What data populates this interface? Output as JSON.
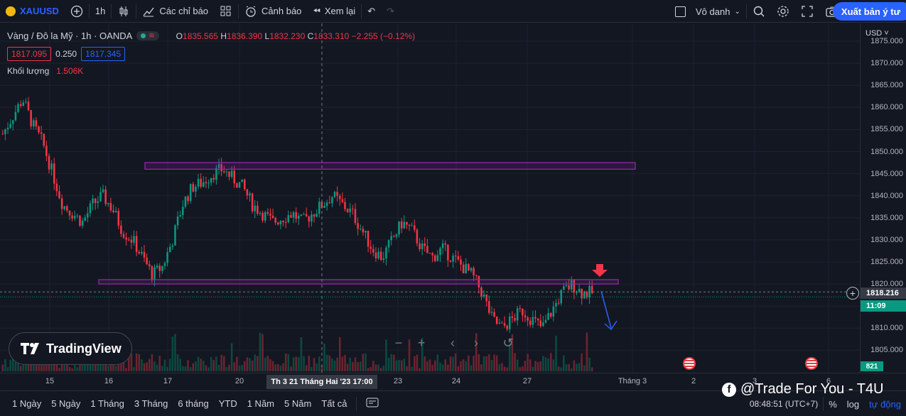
{
  "toolbar": {
    "symbol": "XAUUSD",
    "interval": "1h",
    "indicators_label": "Các chỉ báo",
    "alerts_label": "Cảnh báo",
    "replay_label": "Xem lại",
    "layout_name": "Vô danh",
    "publish_label": "Xuất bản ý tư"
  },
  "legend": {
    "title": "Vàng / Đô la Mỹ · 1h · OANDA",
    "open_key": "O",
    "open": "1835.565",
    "high_key": "H",
    "high": "1836.390",
    "low_key": "L",
    "low": "1832.230",
    "close_key": "C",
    "close": "1833.310",
    "change": "−2.255 (−0.12%)",
    "bid": "1817.095",
    "spread": "0.250",
    "ask": "1817.345",
    "volume_label": "Khối lượng",
    "volume_value": "1.506K"
  },
  "price_axis": {
    "currency": "USD",
    "ticks": [
      "1875.000",
      "1870.000",
      "1865.000",
      "1860.000",
      "1855.000",
      "1850.000",
      "1845.000",
      "1840.000",
      "1835.000",
      "1830.000",
      "1825.000",
      "1820.000",
      "1815.000",
      "1810.000",
      "1805.000"
    ],
    "current_price": "1818.216",
    "countdown": "11:09",
    "volume_badge": "821"
  },
  "time_axis": {
    "labels": [
      "15",
      "16",
      "17",
      "20",
      "23",
      "24",
      "27",
      "Tháng 3",
      "2",
      "3",
      "6"
    ],
    "crosshair_label": "Th 3 21 Tháng Hai '23   17:00"
  },
  "branding": {
    "logo_text": "TradingView"
  },
  "bottom": {
    "ranges": [
      "1 Ngày",
      "5 Ngày",
      "1 Tháng",
      "3 Tháng",
      "6 tháng",
      "YTD",
      "1 Năm",
      "5 Năm",
      "Tất cả"
    ],
    "clock": "08:48:51 (UTC+7)",
    "percent": "%",
    "log": "log",
    "auto": "tự động"
  },
  "watermark": "@Trade For You - T4U",
  "colors": {
    "bg": "#131722",
    "up": "#089981",
    "down": "#f23645",
    "zone": "#9c27b0",
    "arrow_down_marker": "#f23645",
    "projection": "#2962ff"
  },
  "chart_data": {
    "type": "candlestick",
    "title": "Vàng / Đô la Mỹ · 1h · OANDA",
    "xlabel": "",
    "ylabel": "USD",
    "ylim": [
      1803,
      1876
    ],
    "x_labels": [
      "15",
      "16",
      "17",
      "20",
      "23",
      "24",
      "27"
    ],
    "trend_closes": [
      1854,
      1858,
      1862,
      1856,
      1852,
      1845,
      1838,
      1836,
      1834,
      1838,
      1840,
      1837,
      1832,
      1830,
      1826,
      1822,
      1824,
      1830,
      1838,
      1842,
      1843,
      1845,
      1846,
      1844,
      1842,
      1838,
      1836,
      1834,
      1835,
      1836,
      1834,
      1836,
      1838,
      1840,
      1838,
      1836,
      1832,
      1828,
      1826,
      1830,
      1834,
      1832,
      1828,
      1826,
      1828,
      1826,
      1824,
      1822,
      1818,
      1812,
      1810,
      1812,
      1814,
      1812,
      1810,
      1814,
      1818,
      1820,
      1818,
      1818
    ],
    "resistance_zone": [
      1846,
      1847.5
    ],
    "support_zone": [
      1820,
      1821
    ],
    "volume_max_k": 2.5
  }
}
